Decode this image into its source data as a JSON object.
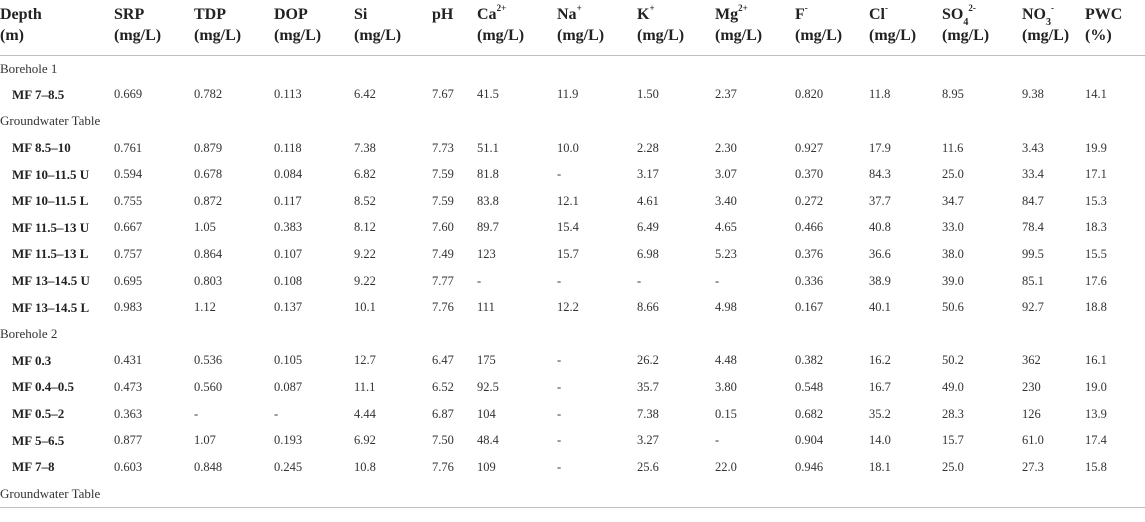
{
  "table": {
    "headers": [
      {
        "line1": "Depth",
        "sup": "",
        "line2": "(m)"
      },
      {
        "line1": "SRP",
        "sup": "",
        "line2": "(mg/L)"
      },
      {
        "line1": "TDP",
        "sup": "",
        "line2": "(mg/L)"
      },
      {
        "line1": "DOP",
        "sup": "",
        "line2": "(mg/L)"
      },
      {
        "line1": "Si",
        "sup": "",
        "line2": "(mg/L)"
      },
      {
        "line1": "pH",
        "sup": "",
        "line2": ""
      },
      {
        "line1": "Ca",
        "sup": "2+",
        "line2": "(mg/L)"
      },
      {
        "line1": "Na",
        "sup": "+",
        "line2": "(mg/L)"
      },
      {
        "line1": "K",
        "sup": "+",
        "line2": "(mg/L)"
      },
      {
        "line1": "Mg",
        "sup": "2+",
        "line2": "(mg/L)"
      },
      {
        "line1": "F",
        "sup": "-",
        "line2": "(mg/L)"
      },
      {
        "line1": "Cl",
        "sup": "-",
        "line2": "(mg/L)"
      },
      {
        "line1": "SO",
        "sup": "4",
        "sup2": "2-",
        "line2": "(mg/L)"
      },
      {
        "line1": "NO",
        "sup": "3",
        "sup2": "-",
        "line2": "(mg/L)"
      },
      {
        "line1": "PWC",
        "sup": "",
        "line2": "(%)"
      }
    ],
    "rows": [
      {
        "type": "section",
        "label": "Borehole 1"
      },
      {
        "type": "data",
        "cells": [
          "MF 7–8.5",
          "0.669",
          "0.782",
          "0.113",
          "6.42",
          "7.67",
          "41.5",
          "11.9",
          "1.50",
          "2.37",
          "0.820",
          "11.8",
          "8.95",
          "9.38",
          "14.1"
        ]
      },
      {
        "type": "section",
        "label": "Groundwater Table"
      },
      {
        "type": "data",
        "cells": [
          "MF 8.5–10",
          "0.761",
          "0.879",
          "0.118",
          "7.38",
          "7.73",
          "51.1",
          "10.0",
          "2.28",
          "2.30",
          "0.927",
          "17.9",
          "11.6",
          "3.43",
          "19.9"
        ]
      },
      {
        "type": "data",
        "cells": [
          "MF 10–11.5 U",
          "0.594",
          "0.678",
          "0.084",
          "6.82",
          "7.59",
          "81.8",
          "-",
          "3.17",
          "3.07",
          "0.370",
          "84.3",
          "25.0",
          "33.4",
          "17.1"
        ]
      },
      {
        "type": "data",
        "cells": [
          "MF 10–11.5 L",
          "0.755",
          "0.872",
          "0.117",
          "8.52",
          "7.59",
          "83.8",
          "12.1",
          "4.61",
          "3.40",
          "0.272",
          "37.7",
          "34.7",
          "84.7",
          "15.3"
        ]
      },
      {
        "type": "data",
        "cells": [
          "MF 11.5–13 U",
          "0.667",
          "1.05",
          "0.383",
          "8.12",
          "7.60",
          "89.7",
          "15.4",
          "6.49",
          "4.65",
          "0.466",
          "40.8",
          "33.0",
          "78.4",
          "18.3"
        ]
      },
      {
        "type": "data",
        "cells": [
          "MF 11.5–13 L",
          "0.757",
          "0.864",
          "0.107",
          "9.22",
          "7.49",
          "123",
          "15.7",
          "6.98",
          "5.23",
          "0.376",
          "36.6",
          "38.0",
          "99.5",
          "15.5"
        ]
      },
      {
        "type": "data",
        "cells": [
          "MF 13–14.5 U",
          "0.695",
          "0.803",
          "0.108",
          "9.22",
          "7.77",
          "-",
          "-",
          "-",
          "-",
          "0.336",
          "38.9",
          "39.0",
          "85.1",
          "17.6"
        ]
      },
      {
        "type": "data",
        "cells": [
          "MF 13–14.5 L",
          "0.983",
          "1.12",
          "0.137",
          "10.1",
          "7.76",
          "111",
          "12.2",
          "8.66",
          "4.98",
          "0.167",
          "40.1",
          "50.6",
          "92.7",
          "18.8"
        ]
      },
      {
        "type": "section",
        "label": "Borehole 2"
      },
      {
        "type": "data",
        "cells": [
          "MF 0.3",
          "0.431",
          "0.536",
          "0.105",
          "12.7",
          "6.47",
          "175",
          "-",
          "26.2",
          "4.48",
          "0.382",
          "16.2",
          "50.2",
          "362",
          "16.1"
        ]
      },
      {
        "type": "data",
        "cells": [
          "MF 0.4–0.5",
          "0.473",
          "0.560",
          "0.087",
          "11.1",
          "6.52",
          "92.5",
          "-",
          "35.7",
          "3.80",
          "0.548",
          "16.7",
          "49.0",
          "230",
          "19.0"
        ]
      },
      {
        "type": "data",
        "cells": [
          "MF 0.5–2",
          "0.363",
          "-",
          "-",
          "4.44",
          "6.87",
          "104",
          "-",
          "7.38",
          "0.15",
          "0.682",
          "35.2",
          "28.3",
          "126",
          "13.9"
        ]
      },
      {
        "type": "data",
        "cells": [
          "MF 5–6.5",
          "0.877",
          "1.07",
          "0.193",
          "6.92",
          "7.50",
          "48.4",
          "-",
          "3.27",
          "-",
          "0.904",
          "14.0",
          "15.7",
          "61.0",
          "17.4"
        ]
      },
      {
        "type": "data",
        "cells": [
          "MF 7–8",
          "0.603",
          "0.848",
          "0.245",
          "10.8",
          "7.76",
          "109",
          "-",
          "25.6",
          "22.0",
          "0.946",
          "18.1",
          "25.0",
          "27.3",
          "15.8"
        ]
      },
      {
        "type": "section",
        "label": "Groundwater Table"
      }
    ]
  }
}
